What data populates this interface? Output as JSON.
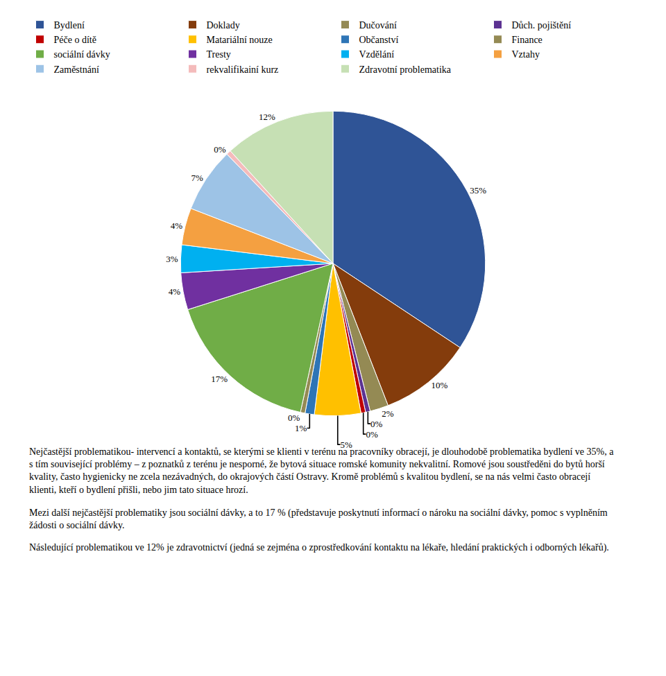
{
  "chart_data": {
    "type": "pie",
    "categories": [
      "Bydlení",
      "Doklady",
      "Dučování",
      "Důch. pojištění",
      "Péče o dítě",
      "Matariální nouze",
      "Občanství",
      "Finance",
      "sociální dávky",
      "Tresty",
      "Vzdělání",
      "Vztahy",
      "Zaměstnání",
      "rekvalifikainí kurz",
      "Zdravotní problematika"
    ],
    "values": [
      35,
      10,
      2,
      0.5,
      0.5,
      5,
      1,
      0.5,
      17,
      4,
      3,
      4,
      7,
      0.5,
      12
    ],
    "value_labels": [
      "35%",
      "10%",
      "2%",
      "0%",
      "0%",
      "5%",
      "1%",
      "0%",
      "17%",
      "4%",
      "3%",
      "4%",
      "7%",
      "0%",
      "12%"
    ],
    "colors": [
      "#2F5496",
      "#843C0C",
      "#948A54",
      "#5C3292",
      "#C00000",
      "#FFC000",
      "#2E75B6",
      "#948A54",
      "#70AD47",
      "#7030A0",
      "#00B0F0",
      "#F4A041",
      "#9DC3E6",
      "#F4BBBB",
      "#C6E0B4"
    ],
    "data_labels": true,
    "legend": "top",
    "annotations": [
      "Nejčastější problematikou- intervencí a kontaktů, se kterými se klienti v terénu na pracovníky obracejí, je dlouhodobě problematika bydlení ve 35%, a s tím související problémy – z poznatků z terénu je nesporné, že bytová situace romské komunity nekvalitní. Romové jsou soustředěni do bytů horší kvality, často hygienicky ne zcela nezávadných, do okrajových částí Ostravy. Kromě problémů s kvalitou bydlení, se na nás velmi často obracejí klienti, kteří o bydlení přišli, nebo jim tato situace hrozí.",
      "Mezi další nejčastější problematiky jsou sociální dávky, a to 17 % (představuje poskytnutí informací o nároku na sociální dávky, pomoc s vyplněním žádosti o sociální dávky.",
      "Následující problematikou ve 12% je zdravotnictví (jedná se zejména o zprostředkování kontaktu na lékaře, hledání praktických i odborných lékařů)."
    ]
  }
}
